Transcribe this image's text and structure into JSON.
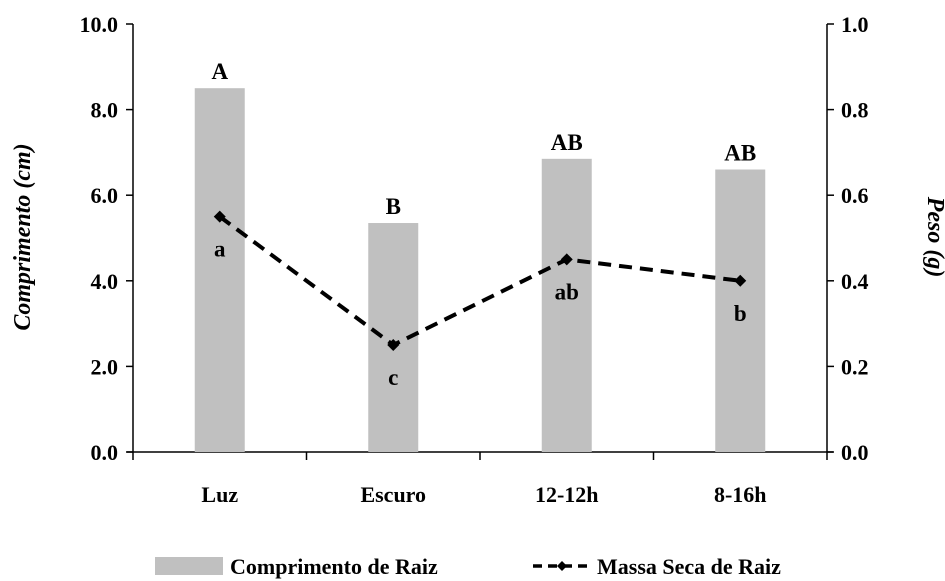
{
  "chart_data": {
    "type": "bar",
    "categories": [
      "Luz",
      "Escuro",
      "12-12h",
      "8-16h"
    ],
    "series": [
      {
        "name": "Comprimento de Raiz",
        "type": "bar",
        "axis": "left",
        "values": [
          8.5,
          5.35,
          6.85,
          6.6
        ],
        "labels": [
          "A",
          "B",
          "AB",
          "AB"
        ],
        "color": "#c0c0c0"
      },
      {
        "name": "Massa Seca de Raiz",
        "type": "line",
        "axis": "right",
        "values": [
          0.55,
          0.25,
          0.45,
          0.4
        ],
        "labels": [
          "a",
          "c",
          "ab",
          "b"
        ],
        "color": "#000000",
        "line_style": "dashed",
        "marker": "diamond"
      }
    ],
    "y_left": {
      "label": "Comprimento (cm)",
      "ylim": [
        0,
        10
      ],
      "ticks": [
        "0.0",
        "2.0",
        "4.0",
        "6.0",
        "8.0",
        "10.0"
      ]
    },
    "y_right": {
      "label": "Peso (g)",
      "ylim": [
        0,
        1
      ],
      "ticks": [
        "0.0",
        "0.2",
        "0.4",
        "0.6",
        "0.8",
        "1.0"
      ]
    },
    "title": "",
    "xlabel": "",
    "grid": false,
    "legend_position": "bottom"
  }
}
